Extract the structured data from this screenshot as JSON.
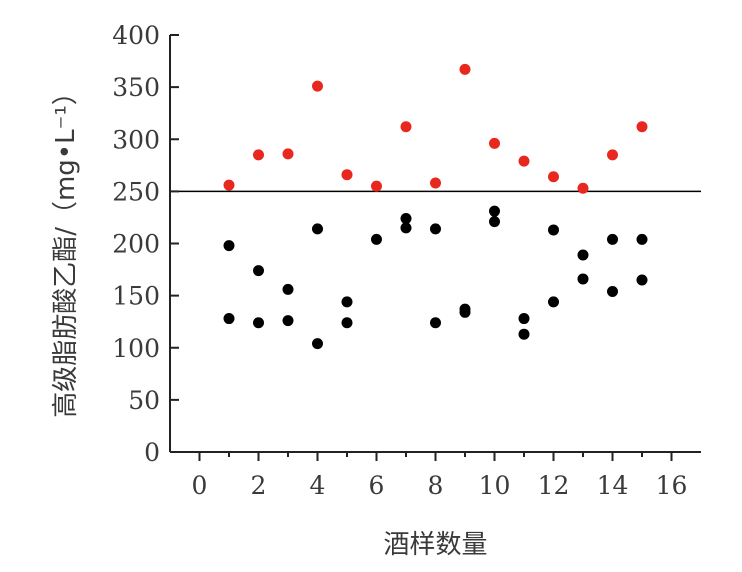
{
  "chart_data": {
    "type": "scatter",
    "xlabel": "酒样数量",
    "ylabel": "高级脂肪酸乙酯/（mg•L⁻¹）",
    "xlim": [
      -1,
      17
    ],
    "ylim": [
      0,
      400
    ],
    "x_ticks": [
      0,
      2,
      4,
      6,
      8,
      10,
      12,
      14,
      16
    ],
    "y_ticks": [
      0,
      50,
      100,
      150,
      200,
      250,
      300,
      350,
      400
    ],
    "reference_line": {
      "y": 250,
      "color": "#000000"
    },
    "grid": false,
    "series": [
      {
        "color": "#e8281e",
        "points": [
          [
            1,
            256
          ],
          [
            2,
            285
          ],
          [
            3,
            286
          ],
          [
            4,
            351
          ],
          [
            5,
            266
          ],
          [
            6,
            255
          ],
          [
            7,
            312
          ],
          [
            8,
            258
          ],
          [
            9,
            367
          ],
          [
            10,
            296
          ],
          [
            11,
            279
          ],
          [
            12,
            264
          ],
          [
            13,
            253
          ],
          [
            14,
            285
          ],
          [
            15,
            312
          ]
        ]
      },
      {
        "color": "#000000",
        "points": [
          [
            1,
            198
          ],
          [
            1,
            128
          ],
          [
            2,
            174
          ],
          [
            2,
            124
          ],
          [
            3,
            156
          ],
          [
            3,
            126
          ],
          [
            4,
            214
          ],
          [
            4,
            104
          ],
          [
            5,
            144
          ],
          [
            5,
            124
          ],
          [
            6,
            204
          ],
          [
            7,
            224
          ],
          [
            7,
            215
          ],
          [
            8,
            214
          ],
          [
            8,
            124
          ],
          [
            9,
            137
          ],
          [
            9,
            134
          ],
          [
            10,
            231
          ],
          [
            10,
            221
          ],
          [
            11,
            128
          ],
          [
            11,
            113
          ],
          [
            12,
            213
          ],
          [
            12,
            144
          ],
          [
            13,
            189
          ],
          [
            13,
            166
          ],
          [
            14,
            204
          ],
          [
            14,
            154
          ],
          [
            15,
            204
          ],
          [
            15,
            165
          ]
        ]
      }
    ]
  }
}
